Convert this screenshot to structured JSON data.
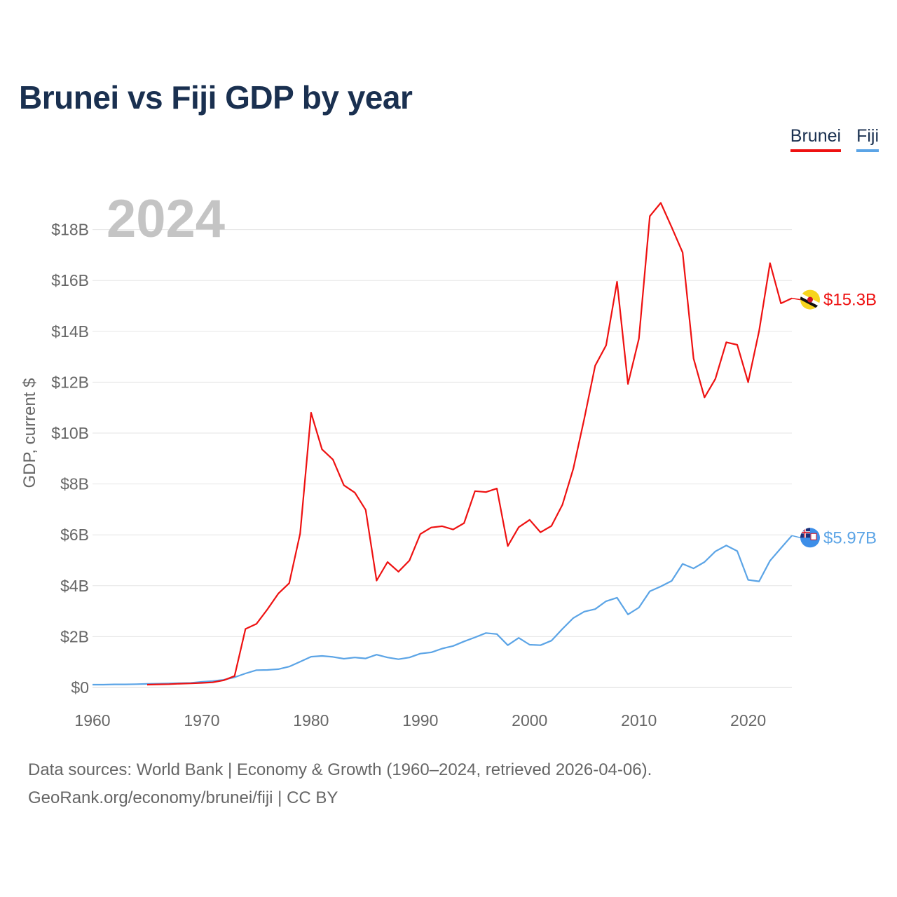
{
  "page": {
    "title": "Brunei vs Fiji GDP by year"
  },
  "legend": [
    {
      "name": "Brunei",
      "color": "#ee1111"
    },
    {
      "name": "Fiji",
      "color": "#5ba4e6"
    }
  ],
  "source": {
    "line1": "Data sources: World Bank | Economy & Growth (1960–2024, retrieved 2026-04-06).",
    "line2": "GeoRank.org/economy/brunei/fiji | CC BY"
  },
  "chart_data": {
    "type": "line",
    "title": "Brunei vs Fiji GDP by year",
    "year_label": "2024",
    "xlabel": "",
    "ylabel": "GDP, current $",
    "xlim": [
      1960,
      2024
    ],
    "ylim": [
      0,
      19
    ],
    "x_ticks": [
      1960,
      1970,
      1980,
      1990,
      2000,
      2010,
      2020
    ],
    "y_ticks": [
      {
        "value": 0,
        "label": "$0"
      },
      {
        "value": 2,
        "label": "$2B"
      },
      {
        "value": 4,
        "label": "$4B"
      },
      {
        "value": 6,
        "label": "$6B"
      },
      {
        "value": 8,
        "label": "$8B"
      },
      {
        "value": 10,
        "label": "$10B"
      },
      {
        "value": 12,
        "label": "$12B"
      },
      {
        "value": 14,
        "label": "$14B"
      },
      {
        "value": 16,
        "label": "$16B"
      },
      {
        "value": 18,
        "label": "$18B"
      }
    ],
    "units": "billions of current US$",
    "series": [
      {
        "name": "Brunei",
        "color": "#ee1111",
        "end_label": "$15.3B",
        "flag_icon": "brunei-flag-icon",
        "x": [
          1965,
          1966,
          1967,
          1968,
          1969,
          1970,
          1971,
          1972,
          1973,
          1974,
          1975,
          1976,
          1977,
          1978,
          1979,
          1980,
          1981,
          1982,
          1983,
          1984,
          1985,
          1986,
          1987,
          1988,
          1989,
          1990,
          1991,
          1992,
          1993,
          1994,
          1995,
          1996,
          1997,
          1998,
          1999,
          2000,
          2001,
          2002,
          2003,
          2004,
          2005,
          2006,
          2007,
          2008,
          2009,
          2010,
          2011,
          2012,
          2013,
          2014,
          2015,
          2016,
          2017,
          2018,
          2019,
          2020,
          2021,
          2022,
          2023,
          2024
        ],
        "values": [
          0.11,
          0.12,
          0.13,
          0.15,
          0.16,
          0.18,
          0.2,
          0.28,
          0.45,
          2.3,
          2.5,
          3.07,
          3.69,
          4.1,
          6.05,
          10.8,
          9.36,
          8.96,
          7.95,
          7.66,
          6.98,
          4.2,
          4.93,
          4.55,
          4.99,
          6.03,
          6.29,
          6.34,
          6.21,
          6.46,
          7.72,
          7.68,
          7.82,
          5.56,
          6.3,
          6.59,
          6.1,
          6.35,
          7.18,
          8.6,
          10.56,
          12.65,
          13.45,
          15.95,
          11.93,
          13.71,
          18.53,
          19.05,
          18.09,
          17.1,
          12.93,
          11.4,
          12.13,
          13.57,
          13.47,
          12.0,
          14.01,
          16.68,
          15.1,
          15.3
        ]
      },
      {
        "name": "Fiji",
        "color": "#5ba4e6",
        "end_label": "$5.97B",
        "flag_icon": "fiji-flag-icon",
        "x": [
          1960,
          1961,
          1962,
          1963,
          1964,
          1965,
          1966,
          1967,
          1968,
          1969,
          1970,
          1971,
          1972,
          1973,
          1974,
          1975,
          1976,
          1977,
          1978,
          1979,
          1980,
          1981,
          1982,
          1983,
          1984,
          1985,
          1986,
          1987,
          1988,
          1989,
          1990,
          1991,
          1992,
          1993,
          1994,
          1995,
          1996,
          1997,
          1998,
          1999,
          2000,
          2001,
          2002,
          2003,
          2004,
          2005,
          2006,
          2007,
          2008,
          2009,
          2010,
          2011,
          2012,
          2013,
          2014,
          2015,
          2016,
          2017,
          2018,
          2019,
          2020,
          2021,
          2022,
          2023,
          2024
        ],
        "values": [
          0.11,
          0.11,
          0.12,
          0.12,
          0.13,
          0.14,
          0.15,
          0.16,
          0.17,
          0.18,
          0.22,
          0.25,
          0.3,
          0.4,
          0.55,
          0.68,
          0.69,
          0.72,
          0.82,
          1.01,
          1.21,
          1.24,
          1.2,
          1.13,
          1.18,
          1.14,
          1.29,
          1.18,
          1.11,
          1.18,
          1.33,
          1.38,
          1.53,
          1.63,
          1.81,
          1.97,
          2.14,
          2.1,
          1.66,
          1.95,
          1.68,
          1.66,
          1.84,
          2.3,
          2.73,
          2.98,
          3.08,
          3.39,
          3.53,
          2.87,
          3.14,
          3.78,
          3.97,
          4.19,
          4.86,
          4.68,
          4.93,
          5.35,
          5.58,
          5.36,
          4.23,
          4.17,
          4.98,
          5.48,
          5.97
        ]
      }
    ]
  }
}
